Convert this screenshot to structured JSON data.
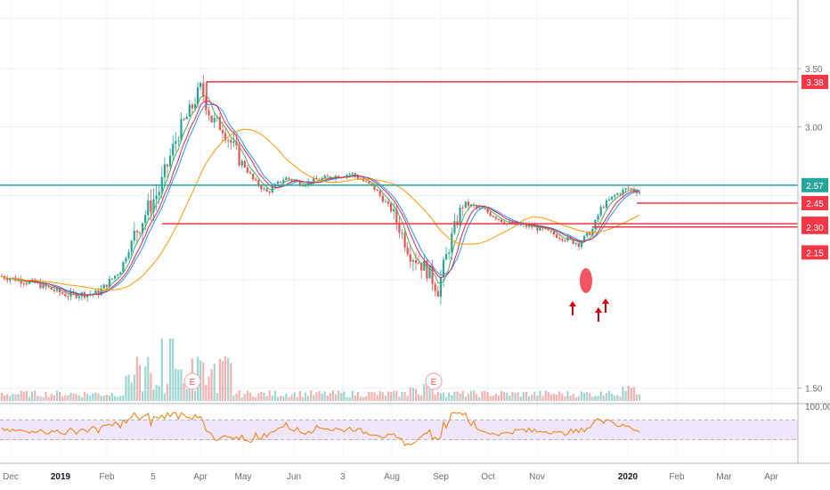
{
  "chart_data": {
    "type": "candlestick",
    "price_axis": {
      "ticks": [
        "3.50",
        "3.00",
        "1.50"
      ],
      "tick_values": [
        3.5,
        3.0,
        1.5
      ],
      "ylim": [
        1.45,
        4.2
      ]
    },
    "time_axis": {
      "labels": [
        "Dec",
        "2019",
        "Feb",
        "5",
        "Apr",
        "May",
        "Jun",
        "3",
        "Aug",
        "Sep",
        "Oct",
        "Nov",
        "2020",
        "Feb",
        "Mar",
        "Apr"
      ],
      "bold_labels": [
        "2019",
        "2020"
      ]
    },
    "horizontal_levels": [
      {
        "value": 3.38,
        "label": "3.38",
        "color": "#f23645"
      },
      {
        "value": 2.57,
        "label": "2.57",
        "color": "#26a69a"
      },
      {
        "value": 2.45,
        "label": "2.45",
        "color": "#f23645"
      },
      {
        "value": 2.32,
        "label": "2.32",
        "color": "#f23645"
      },
      {
        "value": 2.3,
        "label": "2.30",
        "color": "#f23645"
      },
      {
        "value": 2.15,
        "label": "2.15",
        "color": "#f23645"
      }
    ],
    "moving_averages": [
      {
        "color": "#2196f3"
      },
      {
        "color": "#4caf50"
      },
      {
        "color": "#e91e63"
      },
      {
        "color": "#ff9800"
      }
    ],
    "events": [
      "E",
      "E"
    ],
    "annotation_arrows": 3,
    "rsi": {
      "upper_tick": "100.00",
      "band": [
        30,
        70
      ]
    },
    "colors": {
      "up": "#26a69a",
      "down": "#ef5350",
      "level": "#f23645",
      "rsi_line": "#f57c00",
      "rsi_band": "#f0e6fb"
    }
  }
}
